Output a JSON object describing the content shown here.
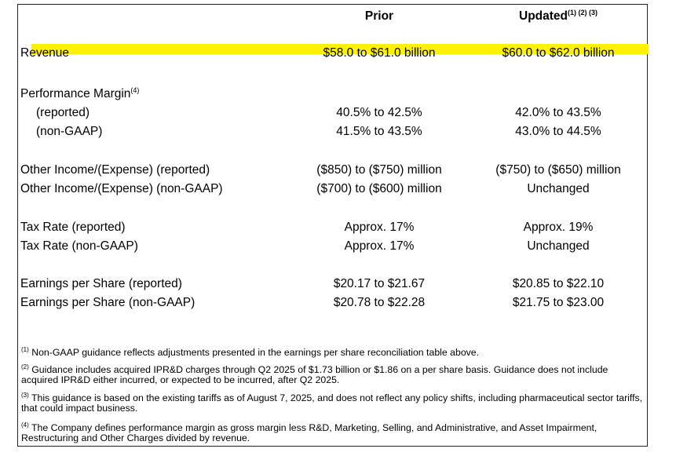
{
  "header": {
    "prior": "Prior",
    "updated": "Updated",
    "updated_refs": "(1) (2) (3)"
  },
  "rows": {
    "revenue": {
      "label": "Revenue",
      "prior": "$58.0 to $61.0 billion",
      "updated": "$60.0 to $62.0 billion"
    },
    "perf_margin": {
      "label": "Performance Margin",
      "ref": "(4)"
    },
    "pm_reported": {
      "label": "(reported)",
      "prior": "40.5% to 42.5%",
      "updated": "42.0% to 43.5%"
    },
    "pm_nongaap": {
      "label": "(non-GAAP)",
      "prior": "41.5% to 43.5%",
      "updated": "43.0% to 44.5%"
    },
    "oi_reported": {
      "label": "Other Income/(Expense) (reported)",
      "prior": "($850) to ($750) million",
      "updated": "($750) to ($650) million"
    },
    "oi_nongaap": {
      "label": "Other Income/(Expense) (non-GAAP)",
      "prior": "($700) to ($600) million",
      "updated": "Unchanged"
    },
    "tax_reported": {
      "label": "Tax Rate (reported)",
      "prior": "Approx. 17%",
      "updated": "Approx. 19%"
    },
    "tax_nongaap": {
      "label": "Tax Rate (non-GAAP)",
      "prior": "Approx. 17%",
      "updated": "Unchanged"
    },
    "eps_reported": {
      "label": "Earnings per Share (reported)",
      "prior": "$20.17 to $21.67",
      "updated": "$20.85 to $22.10"
    },
    "eps_nongaap": {
      "label": "Earnings per Share (non-GAAP)",
      "prior": "$20.78 to $22.28",
      "updated": "$21.75 to $23.00"
    }
  },
  "footnotes": [
    {
      "ref": "(1)",
      "text": " Non-GAAP guidance reflects adjustments presented in the earnings per share reconciliation table above."
    },
    {
      "ref": "(2)",
      "text": "  Guidance includes acquired IPR&D charges through Q2 2025 of $1.73 billion or $1.86 on a per share basis. Guidance does not include acquired IPR&D either incurred, or expected to be incurred, after Q2 2025."
    },
    {
      "ref": "(3)",
      "text": " This guidance is based on the existing tariffs as of August 7, 2025, and does not reflect any policy shifts, including pharmaceutical sector tariffs, that could impact business."
    },
    {
      "ref": "(4)",
      "text": " The Company defines performance margin as gross margin less R&D, Marketing, Selling, and Administrative, and Asset Impairment, Restructuring and Other Charges divided by revenue."
    }
  ],
  "colors": {
    "highlight": "#fff200",
    "border": "#222222"
  }
}
